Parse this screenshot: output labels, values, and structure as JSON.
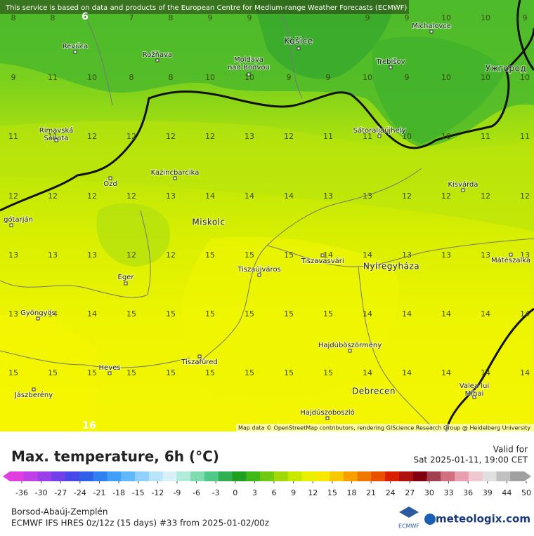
{
  "map": {
    "notice": "This service is based on data and products of the European Centre for Medium-range Weather Forecasts (ECMWF)",
    "attribution": "Map data © OpenStreetMap contributors, rendering GIScience Research Group @ Heidelberg University",
    "grid": [
      [
        8,
        8,
        null,
        7,
        8,
        9,
        9,
        null,
        null,
        9,
        9,
        10,
        10,
        9
      ],
      [
        9,
        11,
        10,
        8,
        8,
        10,
        10,
        9,
        9,
        10,
        9,
        10,
        10,
        10
      ],
      [
        11,
        11,
        12,
        12,
        12,
        12,
        13,
        12,
        11,
        11,
        10,
        10,
        11,
        11
      ],
      [
        12,
        12,
        12,
        12,
        13,
        14,
        14,
        14,
        13,
        13,
        12,
        12,
        12,
        12
      ],
      [
        13,
        13,
        13,
        12,
        12,
        15,
        15,
        15,
        14,
        14,
        13,
        13,
        13,
        13
      ],
      [
        13,
        14,
        14,
        15,
        15,
        15,
        15,
        15,
        15,
        14,
        14,
        14,
        14,
        14
      ],
      [
        15,
        15,
        15,
        15,
        15,
        15,
        15,
        15,
        15,
        14,
        14,
        14,
        14,
        14
      ]
    ],
    "markers": [
      6,
      16
    ],
    "cities": [
      {
        "name": "Revúca"
      },
      {
        "name": "Rožňava"
      },
      {
        "name": [
          "Moldava",
          "nad Bodvou"
        ]
      },
      {
        "name": "Košice"
      },
      {
        "name": "Michalovce"
      },
      {
        "name": "Trebišov"
      },
      {
        "name": "Ужгород"
      },
      {
        "name": [
          "Rimavská",
          "Sobota"
        ]
      },
      {
        "name": "Sátoraljaújhely"
      },
      {
        "name": "Kazincbarcika"
      },
      {
        "name": "Ózd"
      },
      {
        "name": "Kisvárda"
      },
      {
        "name": "gótarján"
      },
      {
        "name": "Miskolc"
      },
      {
        "name": "Tiszaújváros"
      },
      {
        "name": "Tiszavasvári"
      },
      {
        "name": "Nyíregyháza"
      },
      {
        "name": "Mátészalka"
      },
      {
        "name": "Eger"
      },
      {
        "name": "Gyöngyös"
      },
      {
        "name": "Hajdúböszörmény"
      },
      {
        "name": "Tiszafüred"
      },
      {
        "name": "Heves"
      },
      {
        "name": "Debrecen"
      },
      {
        "name": [
          "Valea lui",
          "Mihai"
        ]
      },
      {
        "name": "Jászberény"
      },
      {
        "name": "Hajdúszoboszló"
      }
    ]
  },
  "legend": {
    "title": "Max. temperature, 6h (°C)",
    "valid_label": "Valid for",
    "valid_time": "Sat 2025-01-11, 19:00 CET",
    "ticks": [
      -36,
      -30,
      -27,
      -24,
      -21,
      -18,
      -15,
      -12,
      -9,
      -6,
      -3,
      0,
      3,
      6,
      9,
      12,
      15,
      18,
      21,
      24,
      27,
      30,
      33,
      36,
      39,
      44,
      50
    ],
    "colors": [
      "#e040e0",
      "#c040e8",
      "#9a40e8",
      "#7040e8",
      "#4848e8",
      "#3060e8",
      "#3080f0",
      "#40a0f8",
      "#60b8f8",
      "#90d0fa",
      "#b8e4fa",
      "#d8f0f8",
      "#b0ecd8",
      "#80dcb0",
      "#50c888",
      "#30b050",
      "#20a020",
      "#40b818",
      "#70c810",
      "#a0d808",
      "#c8e800",
      "#e8f000",
      "#f8e800",
      "#f8c800",
      "#f8a000",
      "#f07800",
      "#e85000",
      "#d82000",
      "#b01010",
      "#800010",
      "#a04050",
      "#d07080",
      "#e8a0b0",
      "#f0c8d0",
      "#e0e0e0",
      "#c0c0c0",
      "#a0a0a0"
    ]
  },
  "footer": {
    "region": "Borsod-Abaúj-Zemplén",
    "model": "ECMWF IFS HRES 0z/12z (15 days) #33 from  2025-01-02/00z",
    "ecmwf": "ECMWF",
    "brand": "meteologix.com"
  }
}
